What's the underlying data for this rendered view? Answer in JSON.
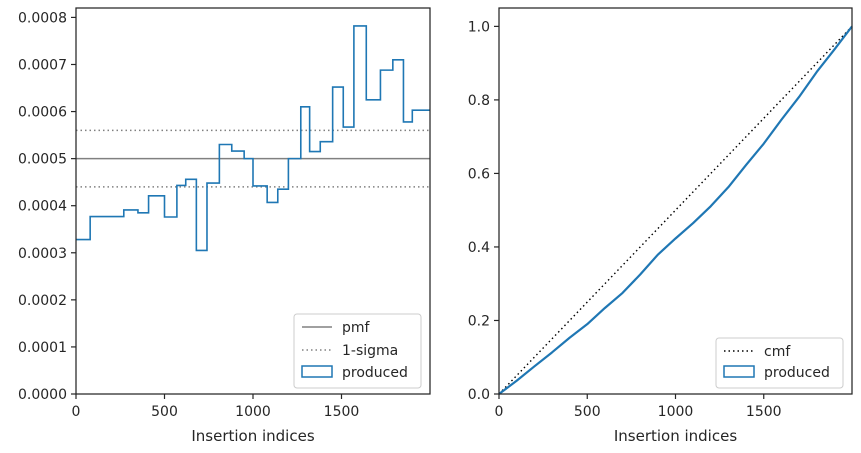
{
  "colors": {
    "produced": "#1f77b4",
    "reference": "#808080",
    "cmf": "#000000",
    "axes": "#262626"
  },
  "chart_data": [
    {
      "type": "step-histogram",
      "xlabel": "Insertion indices",
      "ylabel": "",
      "xlim": [
        0,
        2000
      ],
      "ylim": [
        0,
        0.00082
      ],
      "xticks": [
        "0",
        "500",
        "1000",
        "1500"
      ],
      "yticks": [
        "0.0000",
        "0.0001",
        "0.0002",
        "0.0003",
        "0.0004",
        "0.0005",
        "0.0006",
        "0.0007",
        "0.0008"
      ],
      "lines": [
        {
          "name": "pmf",
          "style": "solid",
          "y": 0.0005
        },
        {
          "name": "1-sigma",
          "style": "dotted",
          "y": [
            0.00044,
            0.00056
          ]
        }
      ],
      "series": [
        {
          "name": "produced",
          "bin_edges": [
            0,
            80,
            200,
            270,
            350,
            410,
            500,
            570,
            620,
            680,
            740,
            810,
            880,
            950,
            1000,
            1080,
            1140,
            1200,
            1270,
            1320,
            1380,
            1450,
            1510,
            1570,
            1640,
            1720,
            1790,
            1850,
            1900,
            1960,
            2000
          ],
          "values": [
            0.000328,
            0.000377,
            0.000377,
            0.000391,
            0.000385,
            0.000421,
            0.000376,
            0.000443,
            0.000456,
            0.000305,
            0.000448,
            0.00053,
            0.000516,
            0.0005,
            0.000442,
            0.000407,
            0.000435,
            0.0005,
            0.00061,
            0.000515,
            0.000536,
            0.000652,
            0.000567,
            0.000782,
            0.000625,
            0.000688,
            0.00071,
            0.000578,
            0.000603,
            0.000603
          ]
        }
      ],
      "legend": {
        "position": "lower-right",
        "entries": [
          "pmf",
          "1-sigma",
          "produced"
        ]
      }
    },
    {
      "type": "line",
      "xlabel": "Insertion indices",
      "ylabel": "",
      "xlim": [
        0,
        2000
      ],
      "ylim": [
        0,
        1.05
      ],
      "xticks": [
        "0",
        "500",
        "1000",
        "1500"
      ],
      "yticks": [
        "0.0",
        "0.2",
        "0.4",
        "0.6",
        "0.8",
        "1.0"
      ],
      "series": [
        {
          "name": "cmf",
          "style": "dotted",
          "x": [
            0,
            2000
          ],
          "y": [
            0,
            1.0
          ]
        },
        {
          "name": "produced",
          "style": "solid",
          "x": [
            0,
            100,
            200,
            300,
            400,
            500,
            600,
            700,
            800,
            900,
            1000,
            1100,
            1200,
            1300,
            1400,
            1500,
            1600,
            1700,
            1800,
            1900,
            2000
          ],
          "y": [
            0,
            0.036,
            0.075,
            0.113,
            0.153,
            0.19,
            0.234,
            0.275,
            0.325,
            0.379,
            0.423,
            0.465,
            0.511,
            0.563,
            0.623,
            0.681,
            0.746,
            0.808,
            0.876,
            0.937,
            1.0
          ]
        }
      ],
      "legend": {
        "position": "lower-right",
        "entries": [
          "cmf",
          "produced"
        ]
      }
    }
  ]
}
